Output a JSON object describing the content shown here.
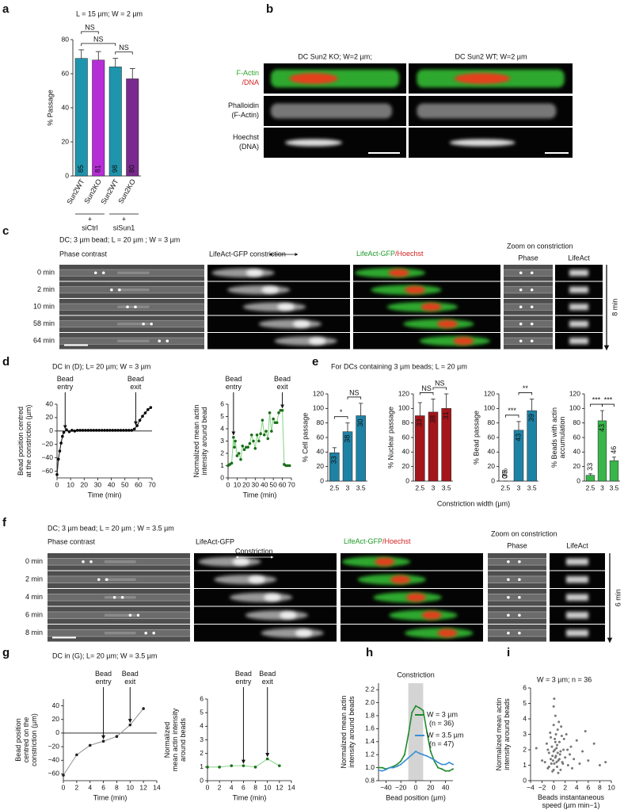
{
  "chart_data": [
    {
      "type": "bar",
      "title": "L = 15 µm; W = 2 µm",
      "ylabel": "% Passage",
      "categories": [
        "Sun2WT",
        "Sun2KO",
        "Sun2WT",
        "Sun2KO"
      ],
      "values": [
        69,
        68,
        64,
        57
      ],
      "errors": [
        5,
        5,
        5,
        6
      ],
      "n": [
        85,
        81,
        98,
        80
      ],
      "colors": [
        "#1f95ad",
        "#b62ed6",
        "#1f95ad",
        "#7a2a8e"
      ],
      "ylim": [
        0,
        80
      ],
      "yticks": [
        0,
        20,
        40,
        60,
        80
      ],
      "comparisons": [
        {
          "pair": [
            0,
            2
          ],
          "label": "NS"
        },
        {
          "pair": [
            2,
            3
          ],
          "label": "NS"
        },
        {
          "pair": [
            0,
            1
          ],
          "label": "NS"
        }
      ],
      "group_marker": "+",
      "groups": [
        {
          "label": "siCtrl",
          "span": [
            0,
            1
          ]
        },
        {
          "label": "siSun1",
          "span": [
            2,
            3
          ]
        }
      ]
    },
    {
      "type": "line",
      "title": "DC in (D); L= 20 µm; W = 3 µm",
      "ylabel": [
        "Bead position centred",
        "at the constriction (µm)"
      ],
      "xlabel": "Time (min)",
      "x": [
        0,
        1,
        2,
        3,
        4,
        5,
        7,
        9,
        11,
        13,
        15,
        17,
        19,
        21,
        23,
        25,
        27,
        29,
        31,
        33,
        35,
        37,
        39,
        41,
        43,
        45,
        47,
        49,
        51,
        53,
        55,
        57,
        59,
        61,
        63,
        65,
        67,
        69
      ],
      "values": [
        -65,
        -42,
        -30,
        -18,
        -8,
        -2,
        2,
        -1,
        1,
        0,
        1,
        1,
        1,
        1,
        1,
        1,
        1,
        1,
        1,
        1,
        1,
        1,
        1,
        1,
        1,
        1,
        1,
        1,
        1,
        1,
        1,
        3,
        8,
        16,
        22,
        27,
        32,
        35
      ],
      "color": "#222222",
      "marker_color": "#000000",
      "hline": 0,
      "xlim": [
        0,
        70
      ],
      "xticks": [
        0,
        10,
        20,
        30,
        40,
        50,
        60,
        70
      ],
      "ylim": [
        -70,
        40
      ],
      "yticks": [
        {
          "value": -60,
          "label": "−60"
        },
        {
          "value": -40,
          "label": "−40"
        },
        {
          "value": -20,
          "label": "−20"
        },
        0,
        20,
        40
      ],
      "annotations": [
        {
          "label": [
            "Bead",
            "entry"
          ],
          "x": 6
        },
        {
          "label": [
            "Bead",
            "exit"
          ],
          "x": 58
        }
      ]
    },
    {
      "type": "line",
      "ylabel": [
        "Normalized mean actin",
        "intensity around bead"
      ],
      "xlabel": "Time (min)",
      "x": [
        0,
        2,
        4,
        6,
        7,
        8,
        10,
        12,
        14,
        16,
        18,
        20,
        22,
        24,
        26,
        28,
        30,
        32,
        34,
        36,
        38,
        40,
        42,
        44,
        46,
        48,
        50,
        52,
        54,
        56,
        58,
        60,
        62,
        64,
        66,
        68
      ],
      "values": [
        1,
        1.1,
        1.2,
        3.3,
        2.5,
        3,
        1.8,
        2,
        1.5,
        2.6,
        2.3,
        2.5,
        2.5,
        2.8,
        3.5,
        3,
        2.4,
        3.5,
        3,
        3.6,
        4.7,
        3.5,
        3.8,
        3.2,
        5.3,
        3.8,
        4.8,
        4.5,
        4.5,
        5.3,
        5.5,
        5.5,
        1.1,
        1,
        1,
        1
      ],
      "color": "#8fd68f",
      "marker_color": "#1a6e1a",
      "xlim": [
        0,
        70
      ],
      "xticks": [
        0,
        10,
        20,
        30,
        40,
        50,
        60,
        70
      ],
      "ylim": [
        0,
        6
      ],
      "yticks": [
        0,
        1,
        2,
        3,
        4,
        5,
        6
      ],
      "annotations": [
        {
          "label": [
            "Bead",
            "entry"
          ],
          "x": 6
        },
        {
          "label": [
            "Bead",
            "exit"
          ],
          "x": 60
        }
      ]
    },
    {
      "type": "bar",
      "ylabel": "% Cell passage",
      "categories": [
        "2.5",
        "3",
        "3.5"
      ],
      "values": [
        39,
        68,
        90
      ],
      "errors": [
        7,
        12,
        17
      ],
      "n": [
        33,
        38,
        30
      ],
      "color": "#1e82a5",
      "ylim": [
        0,
        120
      ],
      "yticks": [
        0,
        20,
        40,
        60,
        80,
        100,
        120
      ],
      "comparisons": [
        {
          "pair": [
            0,
            1
          ],
          "label": "*"
        },
        {
          "pair": [
            1,
            2
          ],
          "label": "NS"
        }
      ]
    },
    {
      "type": "bar",
      "ylabel": "% Nuclear passage",
      "categories": [
        "2.5",
        "3",
        "3.5"
      ],
      "values": [
        90,
        95,
        100
      ],
      "errors": [
        18,
        18,
        20
      ],
      "n": [
        33,
        38,
        31
      ],
      "color": "#a3161b",
      "ylim": [
        0,
        120
      ],
      "yticks": [
        0,
        20,
        40,
        60,
        80,
        100,
        120
      ],
      "comparisons": [
        {
          "pair": [
            0,
            1
          ],
          "label": "NS"
        },
        {
          "pair": [
            1,
            2
          ],
          "label": "NS"
        }
      ]
    },
    {
      "type": "bar",
      "ylabel": "% Bead passage",
      "categories": [
        "2.5",
        "3",
        "3.5"
      ],
      "values": [
        0,
        70,
        97
      ],
      "errors": [
        0,
        12,
        16
      ],
      "value_labels": [
        "0%",
        null,
        null
      ],
      "value_label_color": "#2ab6d6",
      "n": [
        33,
        43,
        39
      ],
      "color": "#1e82a5",
      "ylim": [
        0,
        120
      ],
      "yticks": [
        0,
        20,
        40,
        60,
        80,
        100,
        120
      ],
      "comparisons": [
        {
          "pair": [
            0,
            1
          ],
          "label": "***"
        },
        {
          "pair": [
            1,
            2
          ],
          "label": "**"
        }
      ]
    },
    {
      "type": "bar",
      "ylabel": [
        "% Beads with actin",
        "accumulation"
      ],
      "categories": [
        "2.5",
        "3",
        "3.5"
      ],
      "values": [
        8,
        83,
        28
      ],
      "errors": [
        2,
        14,
        5
      ],
      "n": [
        33,
        43,
        46
      ],
      "color": "#3ab54a",
      "ylim": [
        0,
        120
      ],
      "yticks": [
        0,
        20,
        40,
        60,
        80,
        100,
        120
      ],
      "comparisons": [
        {
          "pair": [
            0,
            1
          ],
          "label": "***"
        },
        {
          "pair": [
            1,
            2
          ],
          "label": "***"
        }
      ]
    },
    {
      "type": "line",
      "title": "DC in (G); L= 20 µm; W = 3.5 µm",
      "ylabel": [
        "Bead position",
        "centred on the",
        "constriction (µm)"
      ],
      "xlabel": "Time (min)",
      "x": [
        0,
        2,
        4,
        6,
        8,
        10,
        12
      ],
      "values": [
        -62,
        -32,
        -18,
        -12,
        -5,
        12,
        36
      ],
      "color": "#9a9a9a",
      "marker_color": "#222222",
      "hline": 0,
      "xlim": [
        0,
        14
      ],
      "xticks": [
        0,
        2,
        4,
        6,
        8,
        10,
        12,
        14
      ],
      "ylim": [
        -70,
        50
      ],
      "yticks": [
        {
          "value": -60,
          "label": "−60"
        },
        {
          "value": -40,
          "label": "−40"
        },
        {
          "value": -20,
          "label": "−20"
        },
        0,
        20,
        40
      ],
      "annotations": [
        {
          "label": [
            "Bead",
            "entry"
          ],
          "x": 6
        },
        {
          "label": [
            "Bead",
            "exit"
          ],
          "x": 10
        }
      ]
    },
    {
      "type": "line",
      "ylabel": [
        "Normalized",
        "mean actin intensity",
        "around beads"
      ],
      "xlabel": "Time (min)",
      "x": [
        0,
        2,
        4,
        6,
        8,
        10,
        12
      ],
      "values": [
        1,
        1,
        1.1,
        1.1,
        1,
        1.6,
        1.1
      ],
      "color": "#8fd68f",
      "marker_color": "#1a6e1a",
      "xlim": [
        0,
        14
      ],
      "xticks": [
        0,
        2,
        4,
        6,
        8,
        10,
        12,
        14
      ],
      "ylim": [
        0,
        6
      ],
      "yticks": [
        0,
        1,
        2,
        3,
        4,
        5,
        6
      ],
      "annotations": [
        {
          "label": [
            "Bead",
            "entry"
          ],
          "x": 6
        },
        {
          "label": [
            "Bead",
            "exit"
          ],
          "x": 10
        }
      ]
    },
    {
      "type": "line",
      "title": "Constriction",
      "ylabel": [
        "Normalized mean actin",
        "intensity around beads"
      ],
      "xlabel": "Bead position (µm)",
      "highlight_x": [
        -10,
        10
      ],
      "x": [
        -50,
        -45,
        -40,
        -35,
        -30,
        -25,
        -20,
        -15,
        -10,
        -5,
        0,
        5,
        10,
        15,
        20,
        25,
        30,
        35,
        40,
        45,
        50
      ],
      "series": [
        {
          "name": "W = 3 µm",
          "note": "(n = 36)",
          "color": "#1f8a2a",
          "values": [
            1.0,
            1.0,
            0.98,
            1.0,
            1.02,
            1.05,
            1.1,
            1.2,
            1.5,
            1.85,
            1.95,
            1.92,
            1.88,
            1.55,
            1.25,
            1.1,
            1.0,
            0.98,
            0.95,
            0.95,
            0.98
          ]
        },
        {
          "name": "W = 3.5 µm",
          "note": "(n = 47)",
          "color": "#3a8fd6",
          "values": [
            0.96,
            0.95,
            0.97,
            1.0,
            1.0,
            1.02,
            1.05,
            1.1,
            1.15,
            1.2,
            1.25,
            1.22,
            1.2,
            1.18,
            1.15,
            1.12,
            1.08,
            1.05,
            1.05,
            1.08,
            1.05
          ]
        }
      ],
      "xlim": [
        -50,
        50
      ],
      "xticks": [
        {
          "value": -40,
          "label": "−40"
        },
        {
          "value": -20,
          "label": "−20"
        },
        0,
        20,
        40
      ],
      "ylim": [
        0.8,
        2.3
      ],
      "yticks": [
        0.8,
        {
          "value": 1,
          "label": "1.0"
        },
        1.2,
        1.4,
        1.6,
        1.8,
        {
          "value": 2,
          "label": "2.0"
        },
        2.2
      ]
    },
    {
      "type": "scatter",
      "title": "W = 3 µm; n = 36",
      "ylabel": [
        "Normalized mean actin",
        "intensity around beads"
      ],
      "xlabel": [
        "Beads instantaneous",
        "speed (µm min−1)"
      ],
      "color": "#777777",
      "x": [
        -1.5,
        -1.2,
        -1,
        -0.8,
        -0.6,
        -0.5,
        -0.3,
        -0.2,
        0,
        0,
        0.1,
        0.2,
        0.3,
        0.4,
        0.5,
        0.6,
        0.7,
        0.8,
        1,
        1.1,
        1.2,
        1.4,
        1.5,
        1.7,
        2,
        2.2,
        2.5,
        3,
        3.5,
        4,
        4.5,
        5,
        6,
        7,
        8,
        -0.5,
        0,
        0.3,
        0.6,
        0.9,
        1.2,
        -0.8,
        -0.2,
        0.4,
        0.8,
        1.6,
        2.4,
        3.2,
        -1,
        0.1,
        0.5,
        1,
        1.8,
        2.8,
        -0.4,
        0.2,
        0.7,
        1.3,
        -2,
        -3,
        5.5,
        9,
        0.3,
        0,
        -0.1
      ],
      "values": [
        1.2,
        2.4,
        0.8,
        1.8,
        3.1,
        1.4,
        2.2,
        0.6,
        1.9,
        3.6,
        1.1,
        2.7,
        4.2,
        1.6,
        2.1,
        0.9,
        3.3,
        1.3,
        2.5,
        1.7,
        0.7,
        2.9,
        1.2,
        2.0,
        1.5,
        3.0,
        1.0,
        2.2,
        1.4,
        2.6,
        1.1,
        1.9,
        1.3,
        2.4,
        1.0,
        2.8,
        4.8,
        1.5,
        2.3,
        3.8,
        1.9,
        0.9,
        1.6,
        3.0,
        0.5,
        1.1,
        2.0,
        0.8,
        2.0,
        5.3,
        1.2,
        1.4,
        2.7,
        1.7,
        1.1,
        2.0,
        1.8,
        3.5,
        1.3,
        2.1,
        3.2,
        1.2,
        2.5,
        0.7,
        1.3
      ],
      "xlim": [
        -4,
        10
      ],
      "xticks": [
        {
          "value": -4,
          "label": "−4"
        },
        {
          "value": -2,
          "label": "−2"
        },
        0,
        2,
        4,
        6,
        8,
        10
      ],
      "ylim": [
        0,
        6
      ],
      "yticks": [
        0,
        1,
        2,
        3,
        4,
        5,
        6
      ]
    }
  ],
  "panels": {
    "letters": [
      "a",
      "b",
      "c",
      "d",
      "e",
      "f",
      "g",
      "h",
      "i"
    ],
    "b": {
      "columns": [
        "DC Sun2 KO; W=2 µm;",
        "DC Sun2 WT; W=2 µm"
      ],
      "rows": [
        [
          "F-Actin",
          "/DNA"
        ],
        [
          "Phalloidin",
          "(F-Actin)"
        ],
        [
          "Hoechst",
          "(DNA)"
        ]
      ]
    },
    "c": {
      "title": "DC; 3 µm bead; L = 20 µm ; W = 3 µm",
      "columns": [
        "Phase contrast",
        "LifeAct-GFP constriction"
      ],
      "merge": [
        "LifeAct-GFP",
        "/Hoechst"
      ],
      "zoom": "Zoom on constriction",
      "zoom_columns": [
        "Phase",
        "LifeAct"
      ],
      "rows": [
        "0 min",
        "2 min",
        "10 min",
        "58 min",
        "64 min"
      ],
      "duration": "8 min"
    },
    "e": {
      "title": "For DCs containing 3 µm beads; L = 20 µm",
      "xlabel": "Constriction width (µm)"
    },
    "f": {
      "title": "DC; 3 µm bead; L = 20 µm ; W = 3.5 µm",
      "columns": [
        "Phase contrast",
        "LifeAct-GFP"
      ],
      "constriction": "Constriction",
      "merge": [
        "LifeAct-GFP",
        "/Hoechst"
      ],
      "zoom": "Zoom on constriction",
      "zoom_columns": [
        "Phase",
        "LifeAct"
      ],
      "rows": [
        "0 min",
        "2 min",
        "4 min",
        "6 min",
        "8 min"
      ],
      "duration": "6 min"
    }
  }
}
